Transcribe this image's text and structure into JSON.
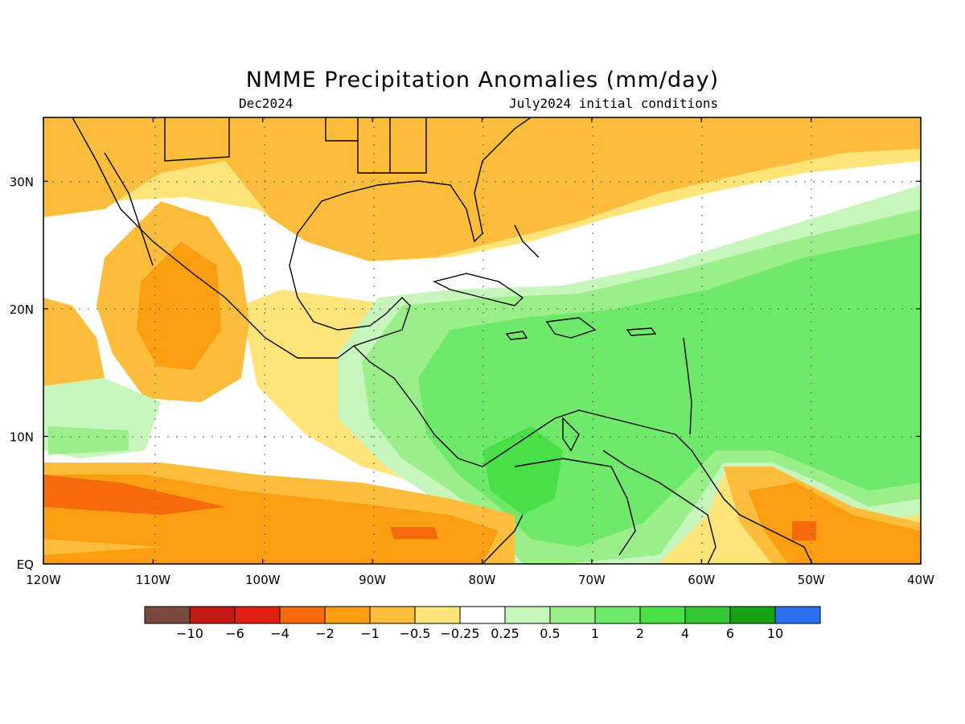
{
  "title": "NMME Precipitation Anomalies (mm/day)",
  "valid_month": "Dec2024",
  "init_conditions": "July2024 initial conditions",
  "map": {
    "lon_labels": [
      "120W",
      "110W",
      "100W",
      "90W",
      "80W",
      "70W",
      "60W",
      "50W",
      "40W"
    ],
    "lat_labels": [
      "EQ",
      "10N",
      "20N",
      "30N"
    ]
  },
  "colorbar": {
    "colors": [
      "#7a4a3f",
      "#c21a12",
      "#e02010",
      "#f56a0a",
      "#fb9e12",
      "#fdbd3c",
      "#ffe47a",
      "#ffffff",
      "#c7f6bc",
      "#9bef8a",
      "#6ee96a",
      "#4ae048",
      "#33c831",
      "#16a313",
      "#2a6ff0"
    ],
    "labels": [
      "−10",
      "−6",
      "−4",
      "−2",
      "−1",
      "−0.5",
      "−0.25",
      "0.25",
      "0.5",
      "1",
      "2",
      "4",
      "6",
      "10"
    ]
  }
}
